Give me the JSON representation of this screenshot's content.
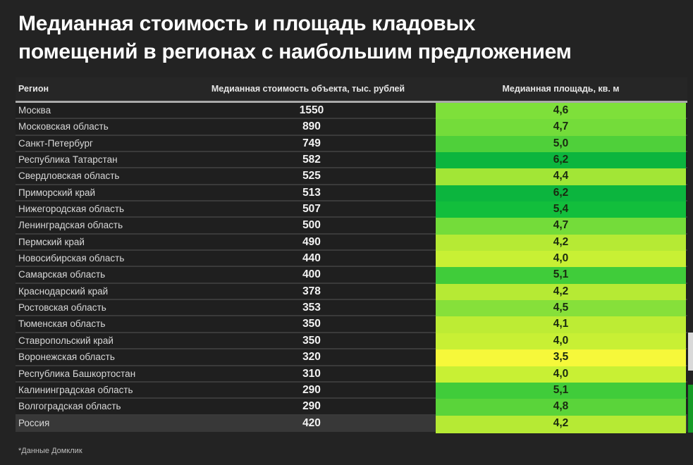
{
  "title": {
    "line1": "Медианная стоимость и площадь кладовых",
    "line2": "помещений в регионах с наибольшим предложением"
  },
  "table": {
    "headers": {
      "region": "Регион",
      "cost": "Медианная стоимость объекта, тыс. рублей",
      "area": "Медианная площадь, кв. м"
    },
    "rows": [
      {
        "region": "Москва",
        "cost": "1550",
        "area": "4,6",
        "color": "#7ee03a"
      },
      {
        "region": "Московская область",
        "cost": "890",
        "area": "4,7",
        "color": "#74dc3a"
      },
      {
        "region": "Санкт-Петербург",
        "cost": "749",
        "area": "5,0",
        "color": "#4fd03a"
      },
      {
        "region": "Республика Татарстан",
        "cost": "582",
        "area": "6,2",
        "color": "#0cb53e"
      },
      {
        "region": "Свердловская область",
        "cost": "525",
        "area": "4,4",
        "color": "#a2e636"
      },
      {
        "region": "Приморский край",
        "cost": "513",
        "area": "6,2",
        "color": "#0cb53e"
      },
      {
        "region": "Нижегородская область",
        "cost": "507",
        "area": "5,4",
        "color": "#12be3c"
      },
      {
        "region": "Ленинградская область",
        "cost": "500",
        "area": "4,7",
        "color": "#74dc3a"
      },
      {
        "region": "Пермский край",
        "cost": "490",
        "area": "4,2",
        "color": "#b6ea34"
      },
      {
        "region": "Новосибирская область",
        "cost": "440",
        "area": "4,0",
        "color": "#c8f034"
      },
      {
        "region": "Самарская область",
        "cost": "400",
        "area": "5,1",
        "color": "#40cc3a"
      },
      {
        "region": "Краснодарский край",
        "cost": "378",
        "area": "4,2",
        "color": "#b6ea34"
      },
      {
        "region": "Ростовская область",
        "cost": "353",
        "area": "4,5",
        "color": "#86e03a"
      },
      {
        "region": "Тюменская область",
        "cost": "350",
        "area": "4,1",
        "color": "#bdec34"
      },
      {
        "region": "Ставропольский край",
        "cost": "350",
        "area": "4,0",
        "color": "#c8f034"
      },
      {
        "region": "Воронежская область",
        "cost": "320",
        "area": "3,5",
        "color": "#f6f83a"
      },
      {
        "region": "Республика Башкортостан",
        "cost": "310",
        "area": "4,0",
        "color": "#c8f034"
      },
      {
        "region": "Калининградская область",
        "cost": "290",
        "area": "5,1",
        "color": "#40cc3a"
      },
      {
        "region": "Волгоградская область",
        "cost": "290",
        "area": "4,8",
        "color": "#5ad43a"
      },
      {
        "region": "Россия",
        "cost": "420",
        "area": "4,2",
        "color": "#b6ea34",
        "total": true
      }
    ]
  },
  "footnote": "*Данные Домклик",
  "chart_data": {
    "type": "table",
    "title": "Медианная стоимость и площадь кладовых помещений в регионах с наибольшим предложением",
    "columns": [
      "Регион",
      "Медианная стоимость объекта, тыс. рублей",
      "Медианная площадь, кв. м"
    ],
    "categories": [
      "Москва",
      "Московская область",
      "Санкт-Петербург",
      "Республика Татарстан",
      "Свердловская область",
      "Приморский край",
      "Нижегородская область",
      "Ленинградская область",
      "Пермский край",
      "Новосибирская область",
      "Самарская область",
      "Краснодарский край",
      "Ростовская область",
      "Тюменская область",
      "Ставропольский край",
      "Воронежская область",
      "Республика Башкортостан",
      "Калининградская область",
      "Волгоградская область",
      "Россия"
    ],
    "series": [
      {
        "name": "Медианная стоимость объекта, тыс. рублей",
        "values": [
          1550,
          890,
          749,
          582,
          525,
          513,
          507,
          500,
          490,
          440,
          400,
          378,
          353,
          350,
          350,
          320,
          310,
          290,
          290,
          420
        ]
      },
      {
        "name": "Медианная площадь, кв. м",
        "values": [
          4.6,
          4.7,
          5.0,
          6.2,
          4.4,
          6.2,
          5.4,
          4.7,
          4.2,
          4.0,
          5.1,
          4.2,
          4.5,
          4.1,
          4.0,
          3.5,
          4.0,
          5.1,
          4.8,
          4.2
        ]
      }
    ],
    "annotations": [
      "*Данные Домклик"
    ],
    "heatmap_column": "Медианная площадь, кв. м",
    "colorscale": [
      "#f6f83a",
      "#0cb53e"
    ]
  }
}
